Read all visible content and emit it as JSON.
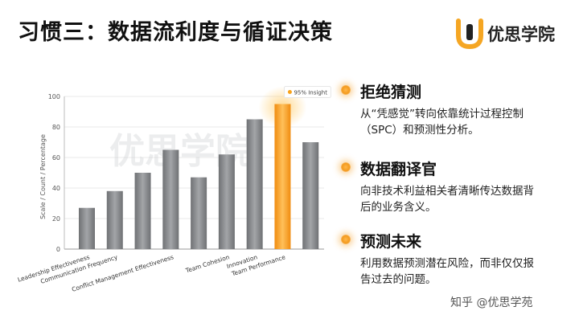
{
  "title": "习惯三：数据流利度与循证决策",
  "brand": {
    "logo_icon": "u-shaped-logo-icon",
    "name": "优思学院",
    "accent": "#f5a623"
  },
  "watermark": "优思学院",
  "points": [
    {
      "title": "拒绝猜测",
      "lines": [
        "从“凭感觉”转向依靠统计过程控制",
        "（SPC）和预测性分析。"
      ]
    },
    {
      "title": "数据翻译官",
      "lines": [
        "向非技术利益相关者清晰传达数据背",
        "后的业务含义。"
      ]
    },
    {
      "title": "预测未来",
      "lines": [
        "利用数据预测潜在风险，而非仅仅报",
        "告过去的问题。"
      ]
    }
  ],
  "footer": "知乎 @优思学苑",
  "chart_data": {
    "type": "bar",
    "ylabel": "Scale / Count / Percentage",
    "xlabel": "",
    "ylim": [
      0,
      100
    ],
    "yticks": [
      0,
      20,
      40,
      60,
      80,
      100
    ],
    "grid": true,
    "categories": [
      "Leadership Effectiveness",
      "Communication Frequency",
      "Conflict Management Effectiveness",
      "Team Cohesion",
      "Innovation",
      "Team Performance"
    ],
    "bars": [
      {
        "value": 27,
        "category_index": 0,
        "highlight": false
      },
      {
        "value": 38,
        "category_index": 1,
        "highlight": false
      },
      {
        "value": 50,
        "category_index": null,
        "highlight": false
      },
      {
        "value": 65,
        "category_index": 2,
        "highlight": false
      },
      {
        "value": 47,
        "category_index": null,
        "highlight": false
      },
      {
        "value": 62,
        "category_index": 3,
        "highlight": false
      },
      {
        "value": 85,
        "category_index": 4,
        "highlight": false
      },
      {
        "value": 95,
        "category_index": 5,
        "highlight": true
      },
      {
        "value": 70,
        "category_index": null,
        "highlight": false
      }
    ],
    "annotation": "95% Insight",
    "colors": {
      "bar": "#8a8c8f",
      "highlight": "#f7a21b"
    }
  }
}
